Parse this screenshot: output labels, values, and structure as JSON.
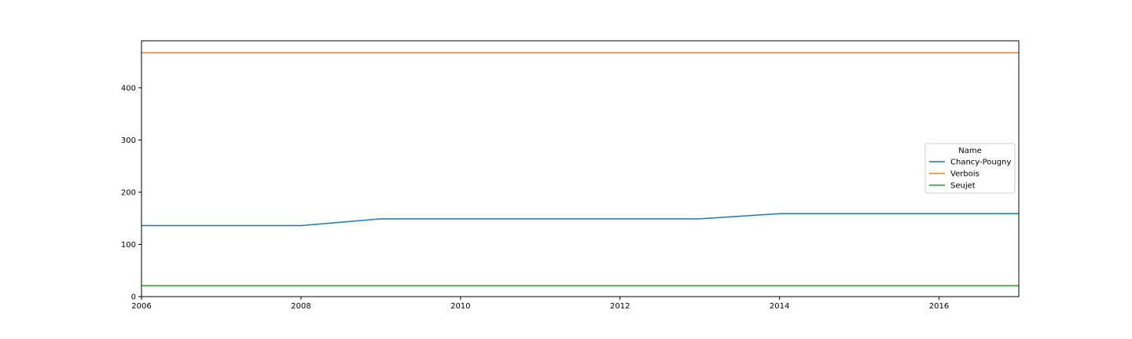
{
  "chart_data": {
    "type": "line",
    "title": "",
    "xlabel": "",
    "ylabel": "",
    "x": [
      2006,
      2007,
      2008,
      2009,
      2010,
      2011,
      2012,
      2013,
      2014,
      2015,
      2016,
      2017
    ],
    "xlim": [
      2006,
      2017
    ],
    "ylim": [
      0,
      490
    ],
    "xticks": [
      2006,
      2008,
      2010,
      2012,
      2014,
      2016
    ],
    "yticks": [
      0,
      100,
      200,
      300,
      400
    ],
    "grid": false,
    "legend": {
      "title": "Name",
      "placement": "center-right"
    },
    "series": [
      {
        "name": "Chancy-Pougny",
        "color": "#1f77b4",
        "values": [
          136,
          136,
          136,
          149,
          149,
          149,
          149,
          149,
          159,
          159,
          159,
          159
        ]
      },
      {
        "name": "Verbois",
        "color": "#ff7f0e",
        "values": [
          467,
          467,
          467,
          467,
          467,
          467,
          467,
          467,
          467,
          467,
          467,
          467
        ]
      },
      {
        "name": "Seujet",
        "color": "#2ca02c",
        "values": [
          21,
          21,
          21,
          21,
          21,
          21,
          21,
          21,
          21,
          21,
          21,
          21
        ]
      }
    ]
  }
}
